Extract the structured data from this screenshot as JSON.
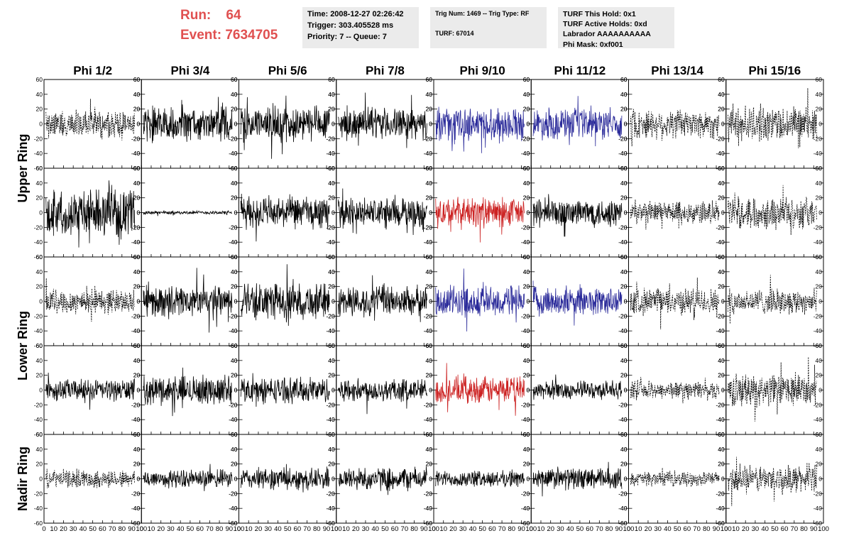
{
  "header": {
    "run_line": "Run:    64",
    "event_line": "Event: 7634705",
    "box1": [
      "Time: 2008-12-27 02:26:42",
      "Trigger: 303.405528 ms",
      "Priority: 7 -- Queue: 7"
    ],
    "box2": [
      "Trig Num: 1469 -- Trig Type: RF",
      "TURF: 67014"
    ],
    "box3": [
      "TURF This Hold: 0x1",
      "TURF Active Holds: 0xd",
      "Labrador AAAAAAAAAA",
      "Phi Mask: 0xf001"
    ]
  },
  "colors": {
    "header_red": "#e05050",
    "trace_black": "#000000",
    "trace_blue": "#2b2b9a",
    "trace_red": "#cc2222"
  },
  "chart_data": {
    "type": "line",
    "description_of_layout": "grid of waveform panels, 5 rows x 8 columns",
    "column_labels": [
      "Phi 1/2",
      "Phi 3/4",
      "Phi 5/6",
      "Phi 7/8",
      "Phi 9/10",
      "Phi 11/12",
      "Phi 13/14",
      "Phi 15/16"
    ],
    "ring_labels": [
      "Upper Ring",
      "Lower Ring",
      "Nadir Ring"
    ],
    "ylim": [
      -60,
      60
    ],
    "yticks": [
      -60,
      -40,
      -20,
      0,
      20,
      40,
      60
    ],
    "xlim": [
      0,
      100
    ],
    "xticks": [
      0,
      10,
      20,
      30,
      40,
      50,
      60,
      70,
      80,
      90,
      100
    ],
    "panel_amplitudes": [
      [
        15,
        18,
        20,
        17,
        18,
        17,
        17,
        20
      ],
      [
        25,
        2,
        18,
        16,
        17,
        16,
        13,
        18
      ],
      [
        14,
        17,
        20,
        17,
        18,
        16,
        15,
        14
      ],
      [
        12,
        16,
        14,
        13,
        15,
        10,
        10,
        18
      ],
      [
        10,
        10,
        12,
        13,
        9,
        12,
        8,
        15
      ]
    ],
    "panel_styles": [
      [
        "dash",
        "solid",
        "solid",
        "solid",
        "blue",
        "blue",
        "dash",
        "dash"
      ],
      [
        "solid",
        "solid",
        "solid",
        "solid",
        "red",
        "solid",
        "dash",
        "dash"
      ],
      [
        "dash",
        "solid",
        "solid",
        "solid",
        "blue",
        "blue",
        "dash",
        "dash"
      ],
      [
        "solid",
        "solid",
        "solid",
        "solid",
        "red",
        "solid",
        "dash",
        "dash"
      ],
      [
        "dash",
        "solid",
        "solid",
        "solid",
        "solid",
        "solid",
        "dash",
        "dash"
      ]
    ]
  }
}
